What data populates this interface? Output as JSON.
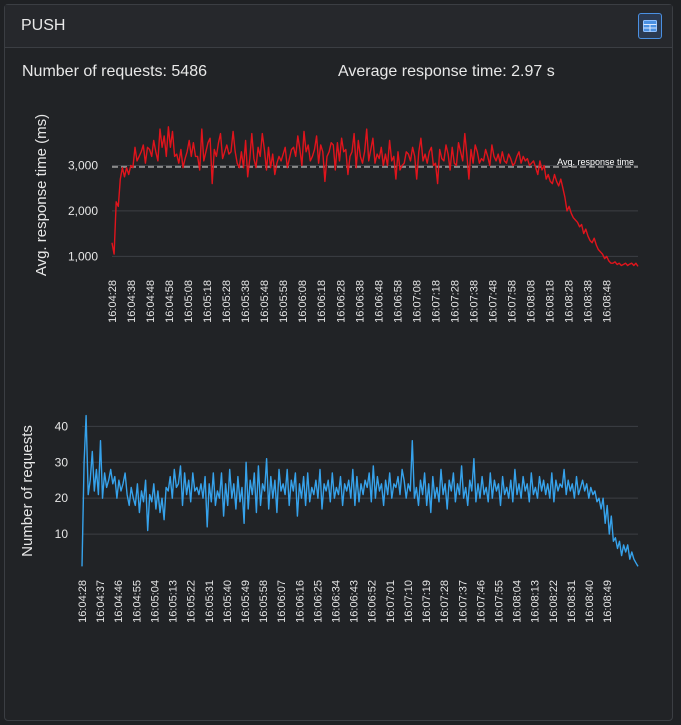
{
  "panel": {
    "title": "PUSH",
    "toggle_icon": "table-view-icon"
  },
  "stats": {
    "requests_text": "Number of requests: 5486",
    "avg_text": "Average response time: 2.97 s"
  },
  "colors": {
    "response": "#e0141c",
    "requests": "#36a2eb",
    "grid": "#3c3f44",
    "avg_line": "#8a8a8a",
    "text": "#e6e6e6"
  },
  "chart_data": [
    {
      "type": "line",
      "ylabel": "Avg. response time (ms)",
      "ylim": [
        700,
        4000
      ],
      "yticks": [
        1000,
        2000,
        3000
      ],
      "ytick_labels": [
        "1,000",
        "2,000",
        "3,000"
      ],
      "x_tick_labels": [
        "16:04:28",
        "16:04:38",
        "16:04:48",
        "16:04:58",
        "16:05:08",
        "16:05:18",
        "16:05:28",
        "16:05:38",
        "16:05:48",
        "16:05:58",
        "16:06:08",
        "16:06:18",
        "16:06:28",
        "16:06:38",
        "16:06:48",
        "16:06:58",
        "16:07:08",
        "16:07:18",
        "16:07:28",
        "16:07:38",
        "16:07:48",
        "16:07:58",
        "16:08:08",
        "16:08:18",
        "16:08:28",
        "16:08:38",
        "16:08:48"
      ],
      "annotation": {
        "label": "Avg. response time",
        "value": 2970
      },
      "series": [
        {
          "values": [
            1300,
            1050,
            2200,
            2100,
            2700,
            2950,
            2750,
            2950,
            2800,
            3000,
            2950,
            3400,
            3100,
            3200,
            3300,
            3450,
            3050,
            3400,
            3350,
            3200,
            3550,
            3300,
            3100,
            3800,
            3400,
            3650,
            3200,
            3850,
            3400,
            3750,
            3200,
            3250,
            3050,
            3350,
            2950,
            3150,
            3300,
            3550,
            3200,
            3500,
            3200,
            3200,
            2900,
            3800,
            3100,
            3300,
            3500,
            3600,
            2600,
            3350,
            3200,
            3500,
            3700,
            3150,
            3300,
            3450,
            3250,
            3300,
            3750,
            3300,
            3050,
            2950,
            3300,
            2950,
            3550,
            2750,
            3150,
            3700,
            3150,
            2950,
            3400,
            3200,
            3700,
            3350,
            2900,
            3400,
            2950,
            3250,
            2800,
            3050,
            3200,
            3100,
            3250,
            3400,
            2950,
            3150,
            3350,
            3400,
            3200,
            3650,
            3350,
            3000,
            3750,
            3300,
            3450,
            3100,
            3200,
            3350,
            3650,
            3050,
            3450,
            3300,
            2650,
            3200,
            3300,
            3500,
            3450,
            2900,
            3500,
            3100,
            3600,
            3300,
            3350,
            2800,
            3200,
            3300,
            3700,
            2950,
            3550,
            3200,
            3050,
            3300,
            3800,
            3100,
            3350,
            3600,
            3050,
            3250,
            3150,
            3400,
            3000,
            3250,
            3000,
            3550,
            3100,
            3200,
            2700,
            3300,
            2900,
            3000,
            3050,
            3300,
            3250,
            3100,
            3400,
            3200,
            2700,
            3300,
            3600,
            3100,
            3250,
            3050,
            3300,
            3400,
            3000,
            3050,
            2600,
            3350,
            3150,
            3100,
            3450,
            3250,
            2900,
            3400,
            3050,
            3000,
            3500,
            3300,
            3100,
            3700,
            3250,
            2700,
            3350,
            3050,
            3450,
            3300,
            3050,
            3150,
            3100,
            3350,
            3200,
            3000,
            3450,
            3200,
            3100,
            3250,
            3050,
            3300,
            3100,
            3050,
            3250,
            3150,
            3000,
            3050,
            3200,
            3300,
            3050,
            3200,
            3100,
            3150,
            3000,
            3050,
            3100,
            2950,
            2800,
            3100,
            2900,
            3000,
            2700,
            2800,
            2650,
            2600,
            2800,
            2650,
            2550,
            2700,
            2500,
            2300,
            2000,
            2100,
            1950,
            1850,
            1800,
            1750,
            1650,
            1700,
            1500,
            1600,
            1450,
            1350,
            1300,
            1400,
            1250,
            1150,
            1100,
            1050,
            950,
            1000,
            900,
            850,
            850,
            880,
            820,
            850,
            800,
            820,
            850,
            800,
            830,
            850,
            800,
            850,
            780
          ]
        }
      ]
    },
    {
      "type": "line",
      "ylabel": "Number of requests",
      "ylim": [
        0,
        44
      ],
      "yticks": [
        10,
        20,
        30,
        40
      ],
      "ytick_labels": [
        "10",
        "20",
        "30",
        "40"
      ],
      "x_tick_labels": [
        "16:04:28",
        "16:04:37",
        "16:04:46",
        "16:04:55",
        "16:05:04",
        "16:05:13",
        "16:05:22",
        "16:05:31",
        "16:05:40",
        "16:05:49",
        "16:05:58",
        "16:06:07",
        "16:06:16",
        "16:06:25",
        "16:06:34",
        "16:06:43",
        "16:06:52",
        "16:07:01",
        "16:07:10",
        "16:07:19",
        "16:07:28",
        "16:07:37",
        "16:07:46",
        "16:07:55",
        "16:08:04",
        "16:08:13",
        "16:08:22",
        "16:08:31",
        "16:08:40",
        "16:08:49"
      ],
      "series": [
        {
          "values": [
            1,
            30,
            43,
            21,
            25,
            33,
            22,
            28,
            21,
            36,
            20,
            27,
            23,
            25,
            28,
            24,
            26,
            20,
            25,
            22,
            24,
            27,
            21,
            18,
            23,
            20,
            18,
            24,
            16,
            22,
            19,
            25,
            11,
            21,
            19,
            24,
            17,
            22,
            16,
            20,
            14,
            23,
            22,
            26,
            20,
            28,
            23,
            24,
            29,
            18,
            27,
            21,
            25,
            19,
            27,
            22,
            23,
            21,
            24,
            20,
            26,
            12,
            24,
            19,
            27,
            18,
            22,
            20,
            27,
            15,
            24,
            18,
            28,
            20,
            24,
            17,
            26,
            19,
            23,
            13,
            30,
            17,
            25,
            21,
            27,
            16,
            29,
            18,
            24,
            22,
            31,
            17,
            26,
            20,
            25,
            16,
            28,
            22,
            24,
            21,
            28,
            18,
            25,
            22,
            27,
            15,
            24,
            20,
            26,
            18,
            27,
            19,
            23,
            21,
            25,
            20,
            28,
            17,
            24,
            22,
            25,
            19,
            27,
            20,
            23,
            21,
            26,
            18,
            24,
            22,
            25,
            20,
            28,
            18,
            26,
            19,
            24,
            21,
            25,
            23,
            27,
            19,
            29,
            20,
            26,
            22,
            24,
            18,
            25,
            21,
            27,
            20,
            24,
            23,
            26,
            21,
            28,
            25,
            20,
            24,
            22,
            36,
            20,
            23,
            18,
            25,
            21,
            27,
            18,
            24,
            16,
            26,
            20,
            23,
            19,
            28,
            21,
            24,
            17,
            25,
            22,
            27,
            19,
            24,
            21,
            29,
            20,
            23,
            18,
            25,
            22,
            31,
            19,
            24,
            20,
            26,
            21,
            23,
            19,
            27,
            20,
            25,
            22,
            24,
            18,
            26,
            21,
            23,
            20,
            25,
            19,
            28,
            21,
            24,
            20,
            26,
            22,
            24,
            19,
            27,
            21,
            23,
            20,
            26,
            22,
            25,
            21,
            24,
            20,
            27,
            19,
            25,
            22,
            24,
            23,
            28,
            21,
            25,
            22,
            24,
            20,
            26,
            21,
            23,
            25,
            22,
            24,
            20,
            23,
            21,
            22,
            19,
            20,
            17,
            20,
            13,
            18,
            10,
            15,
            8,
            9,
            6,
            8,
            4,
            7,
            5,
            7,
            3,
            5,
            3,
            2,
            1
          ]
        }
      ]
    }
  ]
}
